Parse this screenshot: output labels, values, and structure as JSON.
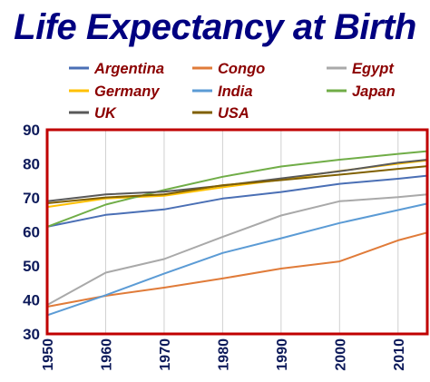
{
  "title": "Life Expectancy at Birth",
  "chart_data": {
    "type": "line",
    "title": "Life Expectancy at Birth",
    "xlabel": "",
    "ylabel": "",
    "x": [
      1950,
      1960,
      1970,
      1980,
      1990,
      2000,
      2010,
      2015
    ],
    "xticks": [
      "1950",
      "1960",
      "1970",
      "1980",
      "1990",
      "2000",
      "2010"
    ],
    "yticks": [
      "30",
      "40",
      "50",
      "60",
      "70",
      "80",
      "90"
    ],
    "xlim": [
      1950,
      2015
    ],
    "ylim": [
      30,
      90
    ],
    "grid": "vertical",
    "legend": "top",
    "frame_color": "#c00000",
    "series": [
      {
        "name": "Argentina",
        "color": "#4a6fb5",
        "values": [
          61.5,
          65.0,
          66.6,
          69.8,
          71.7,
          74.1,
          75.6,
          76.5
        ]
      },
      {
        "name": "Congo",
        "color": "#e07b39",
        "values": [
          38.0,
          41.2,
          43.6,
          46.3,
          49.2,
          51.3,
          57.5,
          59.8
        ]
      },
      {
        "name": "Egypt",
        "color": "#a9a9a9",
        "values": [
          38.5,
          48.0,
          52.0,
          58.5,
          64.8,
          69.0,
          70.2,
          71.0
        ]
      },
      {
        "name": "Germany",
        "color": "#ffc000",
        "values": [
          67.3,
          69.8,
          70.6,
          73.1,
          75.3,
          77.9,
          80.0,
          81.0
        ]
      },
      {
        "name": "India",
        "color": "#5b9bd5",
        "values": [
          35.5,
          41.4,
          47.7,
          53.8,
          58.1,
          62.6,
          66.4,
          68.3
        ]
      },
      {
        "name": "Japan",
        "color": "#70ad47",
        "values": [
          61.5,
          68.0,
          72.3,
          76.2,
          79.2,
          81.2,
          82.9,
          83.7
        ]
      },
      {
        "name": "UK",
        "color": "#595959",
        "values": [
          69.0,
          71.0,
          71.8,
          73.6,
          75.7,
          77.8,
          80.3,
          81.2
        ]
      },
      {
        "name": "USA",
        "color": "#806000",
        "values": [
          68.4,
          70.1,
          71.0,
          73.7,
          75.2,
          76.8,
          78.5,
          79.3
        ]
      }
    ]
  }
}
